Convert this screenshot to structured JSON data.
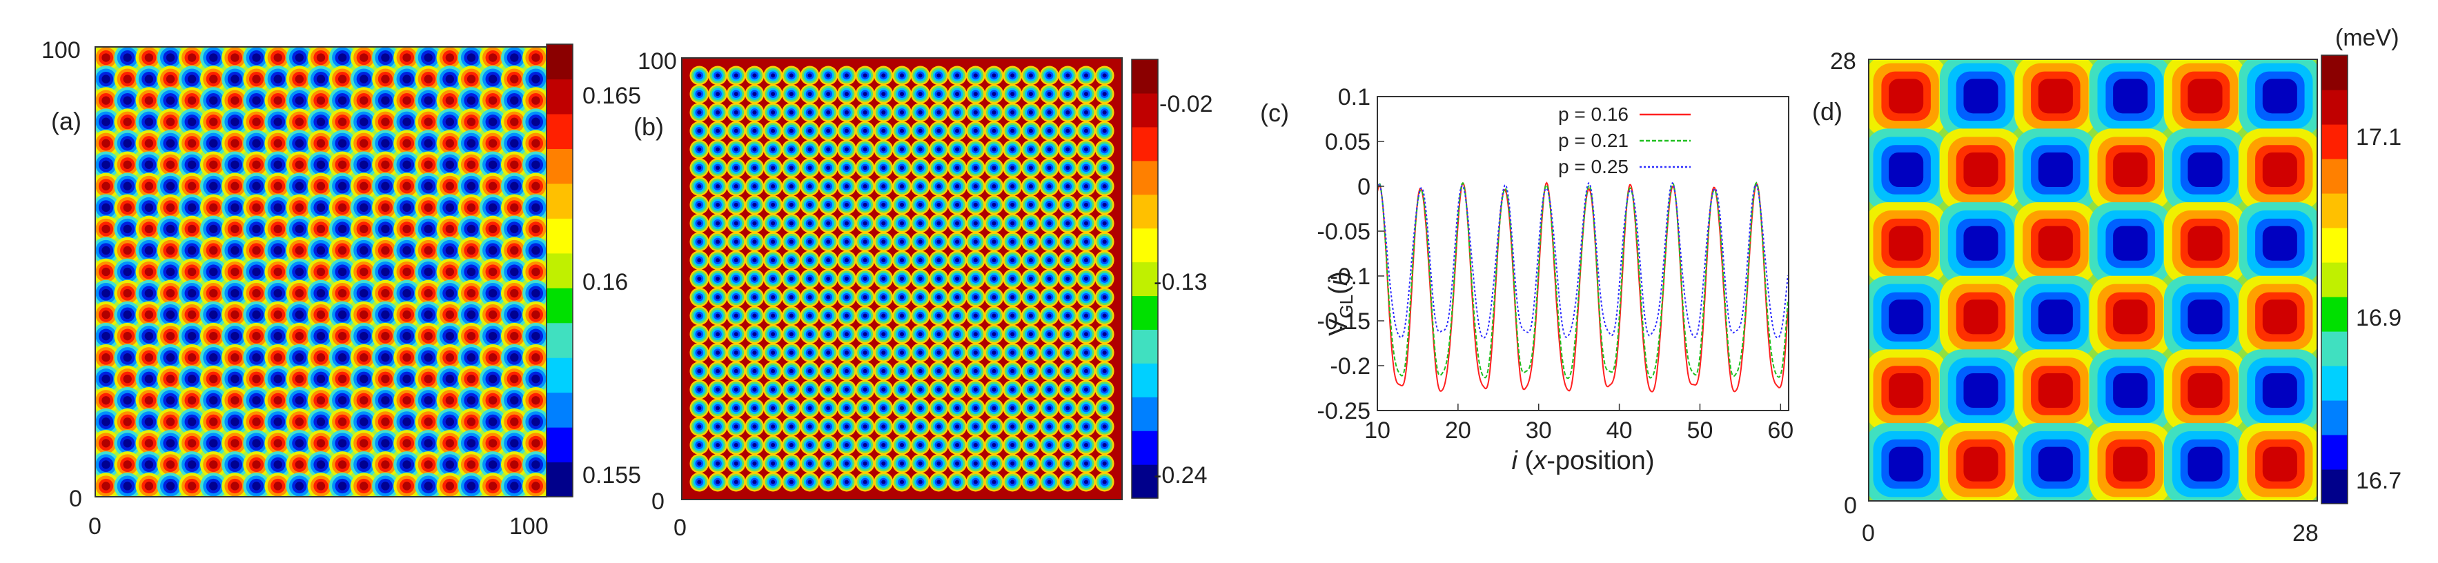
{
  "colors": {
    "scale": [
      "#00008b",
      "#0000ff",
      "#0080ff",
      "#00d0ff",
      "#40e0c0",
      "#00e000",
      "#c0f000",
      "#ffff00",
      "#ffc000",
      "#ff8000",
      "#ff2000",
      "#c00000",
      "#8b0000"
    ],
    "red": "#ff2020",
    "green": "#20c020",
    "blue": "#3030ff"
  },
  "chart_data": [
    {
      "type": "heatmap",
      "panel": "(a)",
      "xlim": [
        0,
        100
      ],
      "ylim": [
        0,
        100
      ],
      "x_ticks": [
        "0",
        "100"
      ],
      "y_ticks": [
        "0",
        "100"
      ],
      "grid_cells": 21,
      "colorbar": {
        "ticks": [
          "0.165",
          "0.16",
          "0.155"
        ],
        "range": [
          0.155,
          0.165
        ]
      }
    },
    {
      "type": "heatmap",
      "panel": "(b)",
      "xlim": [
        0,
        100
      ],
      "ylim": [
        0,
        100
      ],
      "x_ticks": [
        "0"
      ],
      "y_ticks": [
        "0",
        "100"
      ],
      "grid_cells": 23,
      "colorbar": {
        "ticks": [
          "-0.02",
          "-0.13",
          "-0.24"
        ],
        "range": [
          -0.24,
          -0.02
        ]
      }
    },
    {
      "type": "line",
      "panel": "(c)",
      "xlabel": "i (x-position)",
      "ylabel": "V_GL(i)",
      "xlim": [
        10,
        61
      ],
      "ylim": [
        -0.25,
        0.1
      ],
      "x_ticks": [
        "10",
        "20",
        "30",
        "40",
        "50",
        "60"
      ],
      "y_ticks": [
        "0.1",
        "0.05",
        "0",
        "-0.05",
        "-0.1",
        "-0.15",
        "-0.2",
        "-0.25"
      ],
      "period": 5.2,
      "series": [
        {
          "name": "p = 0.16",
          "min": -0.225,
          "max": 0.0,
          "color": "red"
        },
        {
          "name": "p = 0.21",
          "min": -0.21,
          "max": 0.0,
          "color": "green"
        },
        {
          "name": "p = 0.25",
          "min": -0.165,
          "max": 0.0,
          "color": "blue"
        }
      ]
    },
    {
      "type": "heatmap",
      "panel": "(d)",
      "xlim": [
        0,
        28
      ],
      "ylim": [
        0,
        28
      ],
      "x_ticks": [
        "0",
        "28"
      ],
      "y_ticks": [
        "0",
        "28"
      ],
      "grid_cells": 6,
      "colorbar": {
        "unit": "(meV)",
        "ticks": [
          "17.1",
          "16.9",
          "16.7"
        ],
        "range": [
          16.7,
          17.15
        ]
      }
    }
  ]
}
